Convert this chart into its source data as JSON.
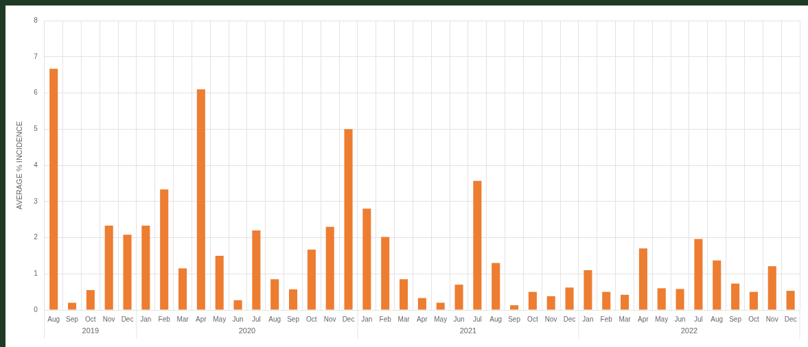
{
  "chart_data": {
    "type": "bar",
    "ylabel": "AVERAGE % INCIDENCE",
    "categories": [
      "Aug",
      "Sep",
      "Oct",
      "Nov",
      "Dec",
      "Jan",
      "Feb",
      "Mar",
      "Apr",
      "May",
      "Jun",
      "Jul",
      "Aug",
      "Sep",
      "Oct",
      "Nov",
      "Dec",
      "Jan",
      "Feb",
      "Mar",
      "Apr",
      "May",
      "Jun",
      "Jul",
      "Aug",
      "Sep",
      "Oct",
      "Nov",
      "Dec",
      "Jan",
      "Feb",
      "Mar",
      "Apr",
      "May",
      "Jun",
      "Jul",
      "Aug",
      "Sep",
      "Oct",
      "Nov",
      "Dec"
    ],
    "values": [
      6.67,
      0.2,
      0.55,
      2.33,
      2.08,
      2.33,
      3.33,
      1.15,
      6.1,
      1.5,
      0.27,
      2.2,
      0.85,
      0.57,
      1.67,
      2.3,
      5.0,
      2.8,
      2.02,
      0.85,
      0.33,
      0.2,
      0.7,
      3.57,
      1.3,
      0.13,
      0.5,
      0.38,
      0.62,
      1.1,
      0.5,
      0.42,
      1.7,
      0.6,
      0.58,
      1.96,
      1.37,
      0.73,
      0.5,
      1.21,
      0.53
    ],
    "color": "#ed7d31",
    "ylim": [
      0,
      8
    ],
    "yticks": [
      0,
      1,
      2,
      3,
      4,
      5,
      6,
      7,
      8
    ],
    "grid": true,
    "annotations": [
      "2019",
      "2020",
      "2021",
      "2022"
    ]
  }
}
